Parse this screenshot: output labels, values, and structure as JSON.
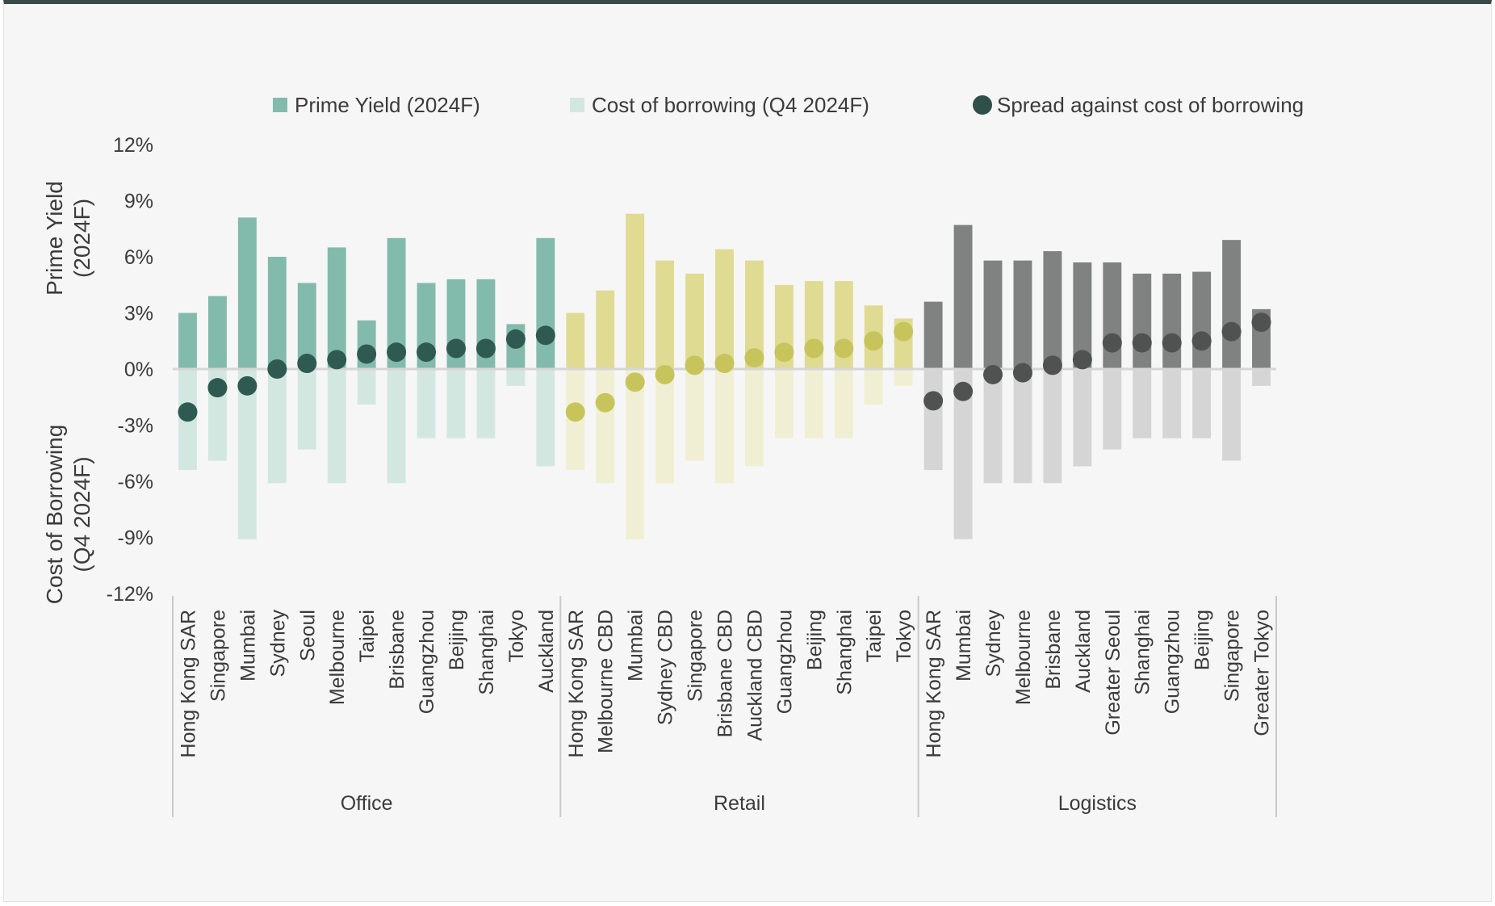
{
  "chart_data": {
    "type": "bar",
    "legend": {
      "position": "top",
      "entries": [
        {
          "label": "Prime Yield (2024F)",
          "marker": "square",
          "color": "#82bbab"
        },
        {
          "label": "Cost of borrowing (Q4 2024F)",
          "marker": "square",
          "color": "#d3e7e1"
        },
        {
          "label": "Spread against cost of borrowing",
          "marker": "circle",
          "color": "#2f4f49"
        }
      ]
    },
    "y_axis": {
      "title_top": [
        "Prime Yield",
        "(2024F)"
      ],
      "title_bottom": [
        "Cost of Borrowing",
        "(Q4 2024F)"
      ],
      "ylim": [
        -12,
        12
      ],
      "ticks": [
        12,
        9,
        6,
        3,
        0,
        -3,
        -6,
        -9,
        -12
      ],
      "tick_labels": [
        "12%",
        "9%",
        "6%",
        "3%",
        "0%",
        "-3%",
        "-6%",
        "-9%",
        "-12%"
      ]
    },
    "groups": [
      {
        "name": "Office",
        "colors": {
          "yield": "#82bbab",
          "borrow": "#d3e7e1",
          "spread": "#2f5a51"
        },
        "categories": [
          "Hong Kong SAR",
          "Singapore",
          "Mumbai",
          "Sydney",
          "Seoul",
          "Melbourne",
          "Taipei",
          "Brisbane",
          "Guangzhou",
          "Beijing",
          "Shanghai",
          "Tokyo",
          "Auckland"
        ],
        "prime_yield": [
          3.0,
          3.9,
          8.1,
          6.0,
          4.6,
          6.5,
          2.6,
          7.0,
          4.6,
          4.8,
          4.8,
          2.4,
          7.0
        ],
        "cost_of_borrowing": [
          -5.4,
          -4.9,
          -9.1,
          -6.1,
          -4.3,
          -6.1,
          -1.9,
          -6.1,
          -3.7,
          -3.7,
          -3.7,
          -0.9,
          -5.2
        ],
        "spread": [
          -2.3,
          -1.0,
          -0.9,
          0.0,
          0.3,
          0.5,
          0.8,
          0.9,
          0.9,
          1.1,
          1.1,
          1.6,
          1.8
        ]
      },
      {
        "name": "Retail",
        "colors": {
          "yield": "#dfdb93",
          "borrow": "#f1efd3",
          "spread": "#c7c45c"
        },
        "categories": [
          "Hong Kong SAR",
          "Melbourne CBD",
          "Mumbai",
          "Sydney CBD",
          "Singapore",
          "Brisbane CBD",
          "Auckland CBD",
          "Guangzhou",
          "Beijing",
          "Shanghai",
          "Taipei",
          "Tokyo"
        ],
        "prime_yield": [
          3.0,
          4.2,
          8.3,
          5.8,
          5.1,
          6.4,
          5.8,
          4.5,
          4.7,
          4.7,
          3.4,
          2.7
        ],
        "cost_of_borrowing": [
          -5.4,
          -6.1,
          -9.1,
          -6.1,
          -4.9,
          -6.1,
          -5.2,
          -3.7,
          -3.7,
          -3.7,
          -1.9,
          -0.9
        ],
        "spread": [
          -2.3,
          -1.8,
          -0.7,
          -0.3,
          0.2,
          0.3,
          0.6,
          0.9,
          1.1,
          1.1,
          1.5,
          2.0
        ]
      },
      {
        "name": "Logistics",
        "colors": {
          "yield": "#7f8280",
          "borrow": "#d5d5d5",
          "spread": "#4f5250"
        },
        "categories": [
          "Hong Kong SAR",
          "Mumbai",
          "Sydney",
          "Melbourne",
          "Brisbane",
          "Auckland",
          "Greater Seoul",
          "Shanghai",
          "Guangzhou",
          "Beijing",
          "Singapore",
          "Greater Tokyo"
        ],
        "prime_yield": [
          3.6,
          7.7,
          5.8,
          5.8,
          6.3,
          5.7,
          5.7,
          5.1,
          5.1,
          5.2,
          6.9,
          3.2
        ],
        "cost_of_borrowing": [
          -5.4,
          -9.1,
          -6.1,
          -6.1,
          -6.1,
          -5.2,
          -4.3,
          -3.7,
          -3.7,
          -3.7,
          -4.9,
          -0.9
        ],
        "spread": [
          -1.7,
          -1.2,
          -0.3,
          -0.2,
          0.2,
          0.5,
          1.4,
          1.4,
          1.4,
          1.5,
          2.0,
          2.5
        ]
      }
    ]
  }
}
